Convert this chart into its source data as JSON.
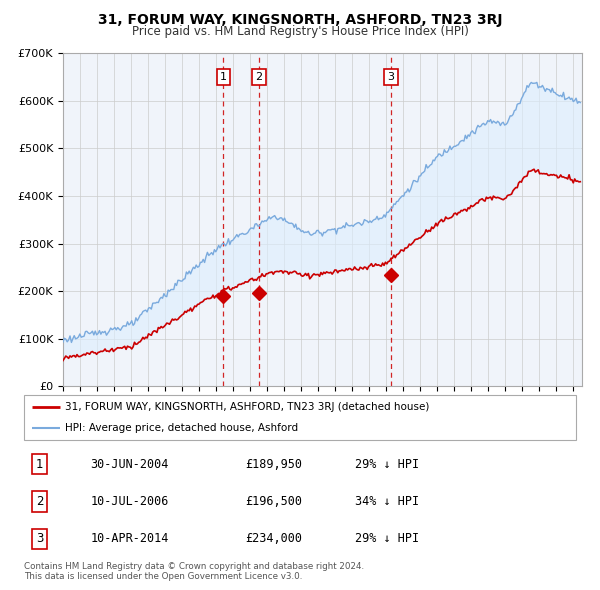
{
  "title": "31, FORUM WAY, KINGSNORTH, ASHFORD, TN23 3RJ",
  "subtitle": "Price paid vs. HM Land Registry's House Price Index (HPI)",
  "ylim": [
    0,
    700000
  ],
  "xlim_start": 1995.0,
  "xlim_end": 2025.5,
  "transactions": [
    {
      "label": "1",
      "date_num": 2004.42,
      "price": 189950
    },
    {
      "label": "2",
      "date_num": 2006.52,
      "price": 196500
    },
    {
      "label": "3",
      "date_num": 2014.27,
      "price": 234000
    }
  ],
  "transaction_table": [
    {
      "num": "1",
      "date": "30-JUN-2004",
      "price": "£189,950",
      "pct": "29% ↓ HPI"
    },
    {
      "num": "2",
      "date": "10-JUL-2006",
      "price": "£196,500",
      "pct": "34% ↓ HPI"
    },
    {
      "num": "3",
      "date": "10-APR-2014",
      "price": "£234,000",
      "pct": "29% ↓ HPI"
    }
  ],
  "legend_entries": [
    {
      "label": "31, FORUM WAY, KINGSNORTH, ASHFORD, TN23 3RJ (detached house)",
      "color": "#cc0000"
    },
    {
      "label": "HPI: Average price, detached house, Ashford",
      "color": "#7aaadd"
    }
  ],
  "footer": "Contains HM Land Registry data © Crown copyright and database right 2024.\nThis data is licensed under the Open Government Licence v3.0.",
  "red_color": "#cc0000",
  "blue_color": "#7aaadd",
  "fill_color": "#ddeeff",
  "box_color": "#cc0000",
  "grid_color": "#cccccc",
  "grid_color_v": "#dddddd"
}
